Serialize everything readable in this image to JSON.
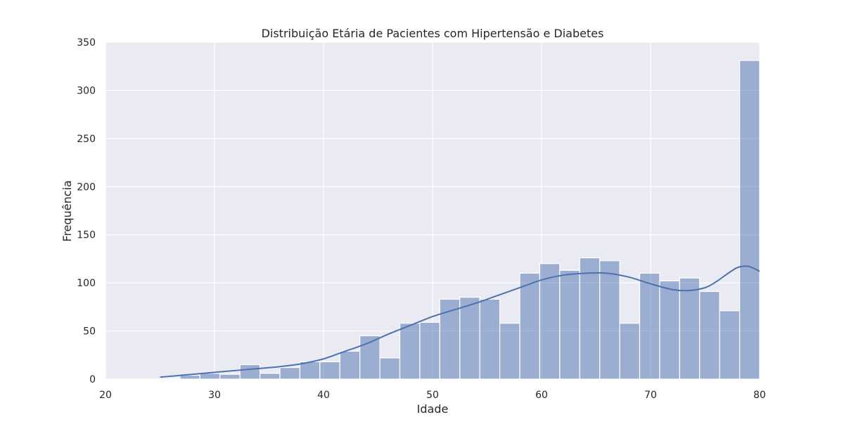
{
  "chart_data": {
    "type": "bar",
    "title": "Distribuição Etária de Pacientes com Hipertensão e Diabetes",
    "xlabel": "Idade",
    "ylabel": "Frequência",
    "xlim": [
      20,
      80
    ],
    "ylim": [
      0,
      350
    ],
    "xticks": [
      "20",
      "30",
      "40",
      "50",
      "60",
      "70",
      "80"
    ],
    "yticks": [
      "0",
      "50",
      "100",
      "150",
      "200",
      "250",
      "300",
      "350"
    ],
    "grid": true,
    "background": "#eaeaf2",
    "bar_color": "#4c72b0",
    "line_color": "#4c72b0",
    "bin_width": 1.833,
    "bins": [
      {
        "start": 25.0,
        "value": 1
      },
      {
        "start": 26.833,
        "value": 4
      },
      {
        "start": 28.667,
        "value": 6
      },
      {
        "start": 30.5,
        "value": 5
      },
      {
        "start": 32.333,
        "value": 15
      },
      {
        "start": 34.167,
        "value": 6
      },
      {
        "start": 36.0,
        "value": 12
      },
      {
        "start": 37.833,
        "value": 18
      },
      {
        "start": 39.667,
        "value": 18
      },
      {
        "start": 41.5,
        "value": 29
      },
      {
        "start": 43.333,
        "value": 45
      },
      {
        "start": 45.167,
        "value": 22
      },
      {
        "start": 47.0,
        "value": 58
      },
      {
        "start": 48.833,
        "value": 59
      },
      {
        "start": 50.667,
        "value": 83
      },
      {
        "start": 52.5,
        "value": 85
      },
      {
        "start": 54.333,
        "value": 83
      },
      {
        "start": 56.167,
        "value": 58
      },
      {
        "start": 58.0,
        "value": 110
      },
      {
        "start": 59.833,
        "value": 120
      },
      {
        "start": 61.667,
        "value": 113
      },
      {
        "start": 63.5,
        "value": 126
      },
      {
        "start": 65.333,
        "value": 123
      },
      {
        "start": 67.167,
        "value": 58
      },
      {
        "start": 69.0,
        "value": 110
      },
      {
        "start": 70.833,
        "value": 102
      },
      {
        "start": 72.667,
        "value": 105
      },
      {
        "start": 74.5,
        "value": 91
      },
      {
        "start": 76.333,
        "value": 71
      },
      {
        "start": 78.167,
        "value": 331
      }
    ],
    "kde": {
      "x": [
        25,
        27,
        30,
        33,
        36,
        38,
        40,
        42,
        44,
        46,
        48,
        50,
        52,
        54,
        56,
        58,
        60,
        62,
        64,
        66,
        68,
        70,
        72,
        73.5,
        75,
        76,
        77,
        78,
        79,
        80
      ],
      "y": [
        2,
        4,
        7,
        10,
        13,
        16,
        21,
        29,
        37,
        47,
        56,
        65,
        72,
        79,
        87,
        95,
        103,
        108,
        110,
        110,
        106,
        99,
        93,
        92,
        95,
        101,
        109,
        116,
        117,
        112
      ]
    }
  }
}
